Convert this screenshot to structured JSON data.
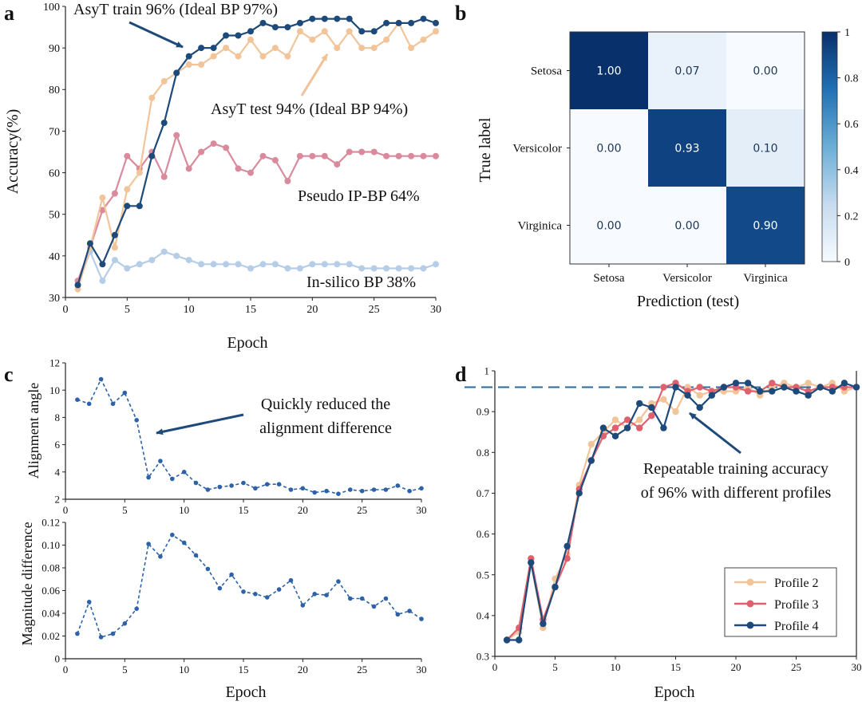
{
  "panel_letters": [
    "a",
    "b",
    "c",
    "d"
  ],
  "colors": {
    "train": "#1d4a7a",
    "test": "#f2c499",
    "pseudo": "#d98a9c",
    "insilico": "#b6cde8",
    "dashed_blue": "#2d62a8",
    "profile2": "#f2c499",
    "profile3": "#e0616e",
    "profile4": "#1d4a7a",
    "ref_line": "#2a6a9c"
  },
  "chart_data": [
    {
      "id": "a",
      "type": "line",
      "xlabel": "Epoch",
      "ylabel": "Accuracy(%)",
      "xlim": [
        0,
        30
      ],
      "ylim": [
        30,
        100
      ],
      "xticks": [
        0,
        5,
        10,
        15,
        20,
        25,
        30
      ],
      "yticks": [
        30,
        40,
        50,
        60,
        70,
        80,
        90,
        100
      ],
      "x": [
        1,
        2,
        3,
        4,
        5,
        6,
        7,
        8,
        9,
        10,
        11,
        12,
        13,
        14,
        15,
        16,
        17,
        18,
        19,
        20,
        21,
        22,
        23,
        24,
        25,
        26,
        27,
        28,
        29,
        30
      ],
      "series": [
        {
          "name": "In-silico BP",
          "color_key": "insilico",
          "values": [
            33,
            41,
            34,
            39,
            37,
            38,
            39,
            41,
            40,
            39,
            38,
            38,
            38,
            38,
            37,
            38,
            38,
            37,
            37,
            38,
            38,
            38,
            38,
            37,
            37,
            37,
            37,
            37,
            37,
            38
          ]
        },
        {
          "name": "Pseudo IP-BP",
          "color_key": "pseudo",
          "values": [
            34,
            42,
            51,
            55,
            64,
            61,
            65,
            59,
            69,
            61,
            65,
            67,
            66,
            61,
            60,
            64,
            63,
            58,
            64,
            64,
            64,
            62,
            65,
            65,
            65,
            64,
            64,
            64,
            64,
            64
          ]
        },
        {
          "name": "AsyT test",
          "color_key": "test",
          "values": [
            32,
            42,
            54,
            42,
            56,
            60,
            78,
            82,
            84,
            86,
            86,
            88,
            90,
            88,
            92,
            88,
            90,
            88,
            94,
            92,
            94,
            90,
            94,
            90,
            90,
            92,
            96,
            90,
            92,
            94
          ]
        },
        {
          "name": "AsyT train",
          "color_key": "train",
          "values": [
            33,
            43,
            38,
            45,
            52,
            52,
            64,
            72,
            84,
            88,
            90,
            90,
            93,
            93,
            94,
            96,
            95,
            95,
            96,
            97,
            97,
            97,
            97,
            94,
            94,
            96,
            96,
            96,
            97,
            96
          ]
        }
      ],
      "annotations": [
        "AsyT train 96% (Ideal BP 97%)",
        "AsyT test 94% (Ideal BP 94%)",
        "Pseudo IP-BP 64%",
        "In-silico BP 38%"
      ]
    },
    {
      "id": "b",
      "type": "heatmap",
      "xlabel": "Prediction (test)",
      "ylabel": "True label",
      "categories": [
        "Setosa",
        "Versicolor",
        "Virginica"
      ],
      "values": [
        [
          1.0,
          0.07,
          0.0
        ],
        [
          0.0,
          0.93,
          0.1
        ],
        [
          0.0,
          0.0,
          0.9
        ]
      ],
      "labels": [
        [
          "1.00",
          "0.07",
          "0.00"
        ],
        [
          "0.00",
          "0.93",
          "0.10"
        ],
        [
          "0.00",
          "0.00",
          "0.90"
        ]
      ],
      "colorbar_ticks": [
        "1",
        "0.8",
        "0.6",
        "0.4",
        "0.2",
        "0"
      ],
      "colorbar_values": [
        1,
        0.8,
        0.6,
        0.4,
        0.2,
        0
      ]
    },
    {
      "id": "c-top",
      "type": "line",
      "xlabel": "",
      "ylabel": "Alignment angle",
      "xlim": [
        0,
        30
      ],
      "ylim": [
        2,
        12
      ],
      "xticks": [
        0,
        5,
        10,
        15,
        20,
        25,
        30
      ],
      "yticks": [
        2,
        4,
        6,
        8,
        10,
        12
      ],
      "x": [
        1,
        2,
        3,
        4,
        5,
        6,
        7,
        8,
        9,
        10,
        11,
        12,
        13,
        14,
        15,
        16,
        17,
        18,
        19,
        20,
        21,
        22,
        23,
        24,
        25,
        26,
        27,
        28,
        29,
        30
      ],
      "values": [
        9.3,
        9.0,
        10.8,
        9.0,
        9.8,
        7.8,
        3.6,
        4.8,
        3.5,
        4.0,
        3.2,
        2.7,
        2.9,
        3.0,
        3.2,
        2.8,
        3.1,
        3.1,
        2.7,
        2.8,
        2.5,
        2.6,
        2.4,
        2.7,
        2.6,
        2.7,
        2.7,
        3.0,
        2.6,
        2.8
      ],
      "annotation": [
        "Quickly reduced the",
        "alignment difference"
      ]
    },
    {
      "id": "c-bottom",
      "type": "line",
      "xlabel": "Epoch",
      "ylabel": "Magnitude difference",
      "xlim": [
        0,
        30
      ],
      "ylim": [
        0,
        0.12
      ],
      "xticks": [
        0,
        5,
        10,
        15,
        20,
        25,
        30
      ],
      "yticks": [
        0,
        0.02,
        0.04,
        0.06,
        0.08,
        0.1,
        0.12
      ],
      "ytick_labels": [
        "0",
        "0.02",
        "0.04",
        "0.06",
        "0.08",
        "0.10",
        "0.12"
      ],
      "x": [
        1,
        2,
        3,
        4,
        5,
        6,
        7,
        8,
        9,
        10,
        11,
        12,
        13,
        14,
        15,
        16,
        17,
        18,
        19,
        20,
        21,
        22,
        23,
        24,
        25,
        26,
        27,
        28,
        29,
        30
      ],
      "values": [
        0.022,
        0.05,
        0.019,
        0.022,
        0.031,
        0.044,
        0.101,
        0.09,
        0.109,
        0.102,
        0.091,
        0.079,
        0.062,
        0.074,
        0.059,
        0.057,
        0.054,
        0.061,
        0.069,
        0.047,
        0.057,
        0.056,
        0.068,
        0.053,
        0.053,
        0.046,
        0.053,
        0.039,
        0.042,
        0.035
      ]
    },
    {
      "id": "d",
      "type": "line",
      "xlabel": "Epoch",
      "ylabel": "",
      "xlim": [
        0,
        30
      ],
      "ylim": [
        0.3,
        1.0
      ],
      "xticks": [
        0,
        5,
        10,
        15,
        20,
        25,
        30
      ],
      "yticks": [
        0.3,
        0.4,
        0.5,
        0.6,
        0.7,
        0.8,
        0.9,
        1.0
      ],
      "ytick_labels": [
        "0.3",
        "0.4",
        "0.5",
        "0.6",
        "0.7",
        "0.8",
        "0.9",
        "1"
      ],
      "reference_line": 0.96,
      "x": [
        1,
        2,
        3,
        4,
        5,
        6,
        7,
        8,
        9,
        10,
        11,
        12,
        13,
        14,
        15,
        16,
        17,
        18,
        19,
        20,
        21,
        22,
        23,
        24,
        25,
        26,
        27,
        28,
        29,
        30
      ],
      "series": [
        {
          "name": "Profile 2",
          "color_key": "profile2",
          "values": [
            0.34,
            0.36,
            0.53,
            0.37,
            0.49,
            0.55,
            0.72,
            0.82,
            0.85,
            0.88,
            0.86,
            0.88,
            0.92,
            0.93,
            0.9,
            0.96,
            0.94,
            0.95,
            0.95,
            0.95,
            0.96,
            0.94,
            0.96,
            0.97,
            0.96,
            0.97,
            0.96,
            0.97,
            0.95,
            0.96
          ]
        },
        {
          "name": "Profile 3",
          "color_key": "profile3",
          "values": [
            0.34,
            0.37,
            0.54,
            0.39,
            0.47,
            0.54,
            0.71,
            0.78,
            0.84,
            0.86,
            0.88,
            0.86,
            0.89,
            0.96,
            0.97,
            0.95,
            0.96,
            0.95,
            0.96,
            0.96,
            0.95,
            0.95,
            0.97,
            0.96,
            0.96,
            0.95,
            0.96,
            0.96,
            0.96,
            0.96
          ]
        },
        {
          "name": "Profile 4",
          "color_key": "profile4",
          "values": [
            0.34,
            0.34,
            0.53,
            0.38,
            0.47,
            0.57,
            0.7,
            0.78,
            0.86,
            0.84,
            0.86,
            0.92,
            0.91,
            0.86,
            0.96,
            0.94,
            0.91,
            0.94,
            0.96,
            0.97,
            0.97,
            0.95,
            0.95,
            0.96,
            0.95,
            0.94,
            0.96,
            0.95,
            0.97,
            0.96
          ]
        }
      ],
      "annotation": [
        "Repeatable training accuracy",
        "of 96% with different profiles"
      ],
      "legend": [
        "Profile 2",
        "Profile 3",
        "Profile 4"
      ],
      "legend_position": "bottom-right"
    }
  ]
}
